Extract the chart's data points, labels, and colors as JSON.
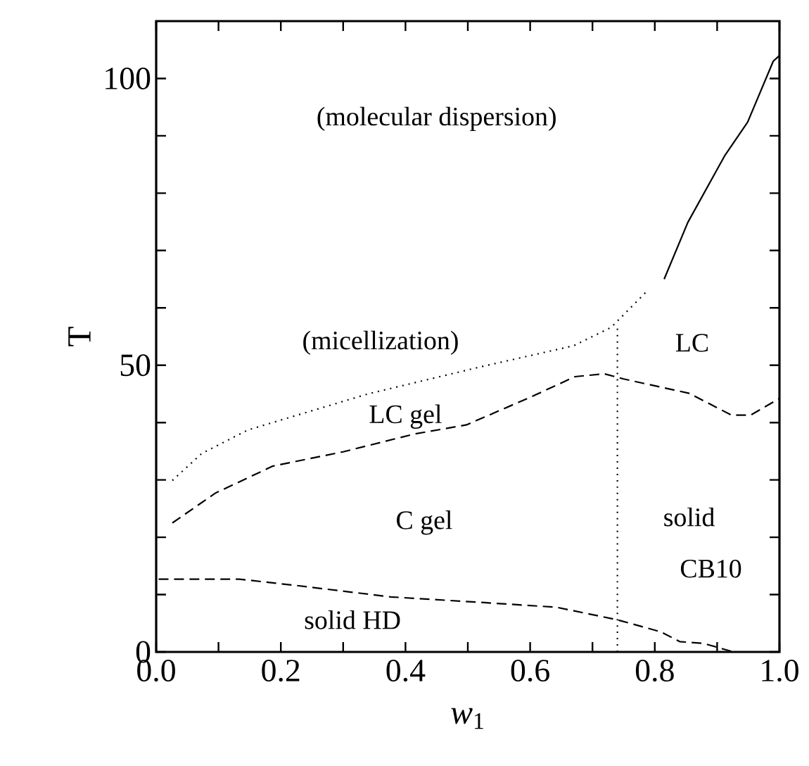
{
  "chart_data": {
    "type": "line",
    "xlabel": "*w*$_{1}$",
    "ylabel": "T",
    "xlim": [
      0,
      1
    ],
    "ylim": [
      0,
      110
    ],
    "xticks": [
      {
        "value": 0,
        "label": "0.0"
      },
      {
        "value": 0.1,
        "label": null
      },
      {
        "value": 0.2,
        "label": "0.2"
      },
      {
        "value": 0.3,
        "label": null
      },
      {
        "value": 0.4,
        "label": "0.4"
      },
      {
        "value": 0.5,
        "label": null
      },
      {
        "value": 0.6,
        "label": "0.6"
      },
      {
        "value": 0.7,
        "label": null
      },
      {
        "value": 0.8,
        "label": "0.8"
      },
      {
        "value": 0.9,
        "label": null
      },
      {
        "value": 1,
        "label": "1.0"
      }
    ],
    "yticks": [
      0,
      {
        "value": 10,
        "label": null
      },
      {
        "value": 20,
        "label": null
      },
      {
        "value": 30,
        "label": null
      },
      {
        "value": 40,
        "label": null
      },
      50,
      {
        "value": 60,
        "label": null
      },
      {
        "value": 70,
        "label": null
      },
      {
        "value": 80,
        "label": null
      },
      {
        "value": 90,
        "label": null
      },
      100
    ],
    "grid": false,
    "marker": "none",
    "series": [
      {
        "color": "#000000",
        "line_style": "dotted",
        "x": [
          0.026,
          0.073,
          0.147,
          0.34,
          0.52,
          0.67,
          0.73,
          0.79
        ],
        "values": [
          29.9,
          34.6,
          38.7,
          45,
          49.7,
          53.4,
          56.6,
          63.2
        ]
      },
      {
        "color": "#000000",
        "line_style": "solid",
        "x": [
          0.815,
          0.853,
          0.912,
          0.949,
          0.99,
          1.0
        ],
        "values": [
          65,
          74.9,
          86.5,
          92.4,
          103,
          104
        ]
      },
      {
        "color": "#000000",
        "line_style": "dashed",
        "x": [
          0.026,
          0.095,
          0.187,
          0.3,
          0.414,
          0.498,
          0.604,
          0.672,
          0.719,
          0.75,
          0.855,
          0.923,
          0.954,
          1.0
        ],
        "values": [
          22.5,
          27.7,
          32.4,
          34.9,
          38,
          39.6,
          44.6,
          48,
          48.5,
          47.6,
          45.1,
          41.3,
          41.3,
          44.2
        ]
      },
      {
        "color": "#000000",
        "line_style": "dashed",
        "x": [
          0.004,
          0.133,
          0.224,
          0.376,
          0.527,
          0.642,
          0.74,
          0.81,
          0.84,
          0.878,
          0.923
        ],
        "values": [
          12.7,
          12.7,
          11.6,
          9.6,
          8.6,
          7.8,
          5.6,
          3.5,
          1.8,
          1.5,
          0.1
        ]
      },
      {
        "color": "#000000",
        "line_style": "dotted",
        "x": [
          0.74,
          0.74
        ],
        "values": [
          0,
          56.8
        ]
      }
    ],
    "annotations": [
      "(molecular dispersion)",
      "(micellization)",
      "LC",
      "LC gel",
      "C gel",
      "solid",
      "CB10",
      "solid HD"
    ]
  }
}
